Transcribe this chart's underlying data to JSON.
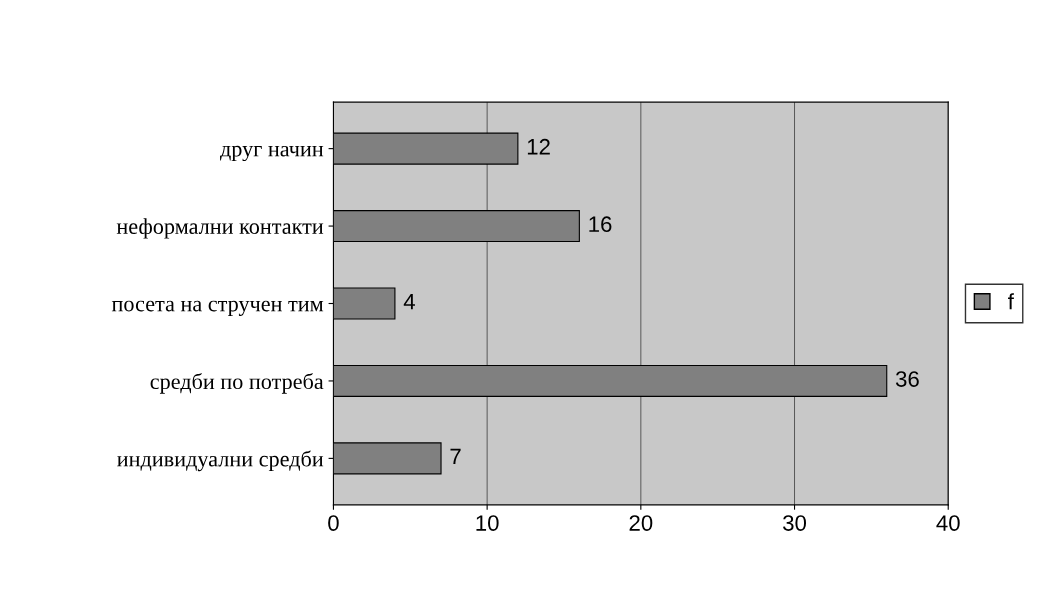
{
  "chart_data": {
    "type": "bar",
    "orientation": "horizontal",
    "categories": [
      "друг начин",
      "неформални контакти",
      "посета на стручен тим",
      "средби по потреба",
      "индивидуални средби"
    ],
    "series": [
      {
        "name": "f",
        "color": "#808080",
        "values": [
          12,
          16,
          4,
          36,
          7
        ]
      }
    ],
    "xlim": [
      0,
      40
    ],
    "xticks": [
      0,
      10,
      20,
      30,
      40
    ],
    "grid": "x",
    "legend": "right",
    "data_labels": true
  }
}
